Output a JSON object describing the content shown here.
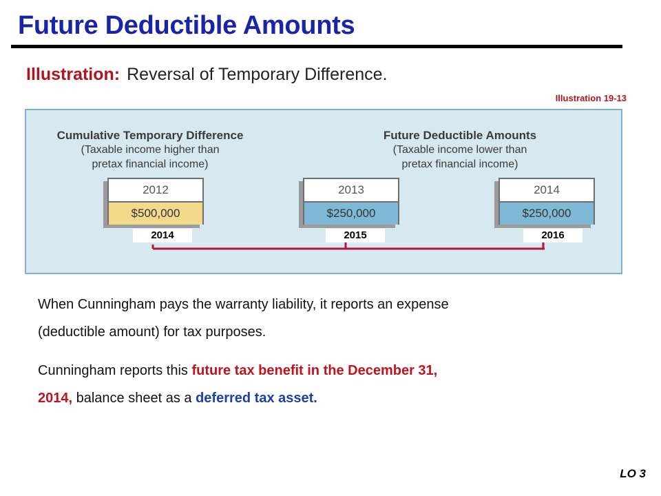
{
  "title": "Future Deductible Amounts",
  "subtitle": {
    "label": "Illustration:",
    "text": "Reversal of Temporary Difference."
  },
  "illustration_ref": "Illustration 19-13",
  "diagram": {
    "left_heading": {
      "bold": "Cumulative Temporary Difference",
      "line1": "(Taxable income higher than",
      "line2": "pretax financial income)"
    },
    "right_heading": {
      "bold": "Future Deductible Amounts",
      "line1": "(Taxable income lower than",
      "line2": "pretax financial income)"
    },
    "boxes": [
      {
        "year": "2012",
        "amount": "$500,000",
        "tag": "2014",
        "fill": "yellow"
      },
      {
        "year": "2013",
        "amount": "$250,000",
        "tag": "2015",
        "fill": "blue"
      },
      {
        "year": "2014",
        "amount": "$250,000",
        "tag": "2016",
        "fill": "blue"
      }
    ],
    "colors": {
      "panel": "#d7e8f1",
      "connector": "#b3153b",
      "yellow": "#f2d98b",
      "blue": "#7fb9d6"
    }
  },
  "paragraph1": {
    "line1": "When Cunningham pays the warranty liability, it reports an expense",
    "line2": "(deductible amount) for tax purposes."
  },
  "paragraph2": {
    "pre": "Cunningham reports this ",
    "red_line1": "future tax benefit in the December 31,",
    "red_line2": "2014,",
    "mid": " balance sheet as a ",
    "blue": "deferred tax asset."
  },
  "footer": "LO 3"
}
